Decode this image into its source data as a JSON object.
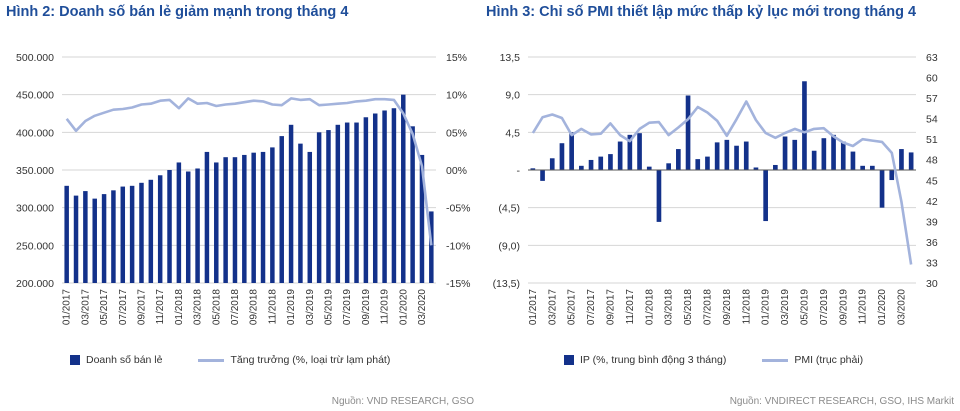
{
  "panels": {
    "left": {
      "title": "Hình 2: Doanh số bán lẻ giảm mạnh trong tháng 4",
      "legend": [
        "Doanh số bán lẻ",
        "Tăng trưởng (%, loại trừ lạm phát)"
      ],
      "source": "Nguồn: VND RESEARCH, GSO"
    },
    "right": {
      "title": "Hình 3: Chỉ số PMI thiết lập mức thấp kỷ lục mới trong tháng 4",
      "legend": [
        "IP (%, trung bình động 3 tháng)",
        "PMI (trục phải)"
      ],
      "source": "Nguồn: VNDIRECT RESEARCH, GSO, IHS Markit"
    }
  },
  "colors": {
    "bar": "#13318a",
    "line": "#a3b3dc",
    "grid": "#d6d6d6",
    "axis_text": "#333333",
    "title": "#1f4e9a"
  },
  "chart_data": [
    {
      "type": "bar",
      "title": "Hình 2: Doanh số bán lẻ giảm mạnh trong tháng 4",
      "categories": [
        "01/2017",
        "02/2017",
        "03/2017",
        "04/2017",
        "05/2017",
        "06/2017",
        "07/2017",
        "08/2017",
        "09/2017",
        "10/2017",
        "11/2017",
        "12/2017",
        "01/2018",
        "02/2018",
        "03/2018",
        "04/2018",
        "05/2018",
        "06/2018",
        "07/2018",
        "08/2018",
        "09/2018",
        "10/2018",
        "11/2018",
        "12/2018",
        "01/2019",
        "02/2019",
        "03/2019",
        "04/2019",
        "05/2019",
        "06/2019",
        "07/2019",
        "08/2019",
        "09/2019",
        "10/2019",
        "11/2019",
        "12/2019",
        "01/2020",
        "02/2020",
        "03/2020",
        "04/2020"
      ],
      "tick_labels": [
        "01/2017",
        "03/2017",
        "05/2017",
        "07/2017",
        "09/2017",
        "11/2017",
        "01/2018",
        "03/2018",
        "05/2018",
        "07/2018",
        "09/2018",
        "11/2018",
        "01/2019",
        "03/2019",
        "05/2019",
        "07/2019",
        "09/2019",
        "11/2019",
        "01/2020",
        "03/2020"
      ],
      "series": [
        {
          "name": "Doanh số bán lẻ",
          "type": "bar",
          "axis": "left",
          "values": [
            329,
            316,
            322,
            312,
            318,
            323,
            328,
            329,
            333,
            337,
            343,
            350,
            360,
            348,
            352,
            374,
            360,
            367,
            367,
            370,
            373,
            374,
            380,
            395,
            410,
            385,
            374,
            400,
            403,
            410,
            413,
            413,
            420,
            425,
            429,
            432,
            450,
            408,
            370,
            295
          ]
        },
        {
          "name": "Tăng trưởng (%, loại trừ lạm phát)",
          "type": "line",
          "axis": "right",
          "values": [
            6.8,
            5.2,
            6.5,
            7.2,
            7.6,
            8.0,
            8.1,
            8.3,
            8.7,
            8.8,
            9.2,
            9.3,
            8.2,
            9.5,
            8.8,
            8.9,
            8.5,
            8.7,
            8.8,
            9.0,
            9.2,
            9.1,
            8.7,
            8.6,
            9.5,
            9.3,
            9.4,
            8.6,
            8.7,
            8.8,
            8.9,
            9.1,
            9.2,
            9.4,
            9.4,
            9.3,
            7.5,
            4.8,
            0.5,
            -10.0
          ]
        }
      ],
      "ylim_left": [
        200,
        500
      ],
      "left_ticks": [
        "200.000",
        "250.000",
        "300.000",
        "350.000",
        "400.000",
        "450.000",
        "500.000"
      ],
      "ylim_right": [
        -15,
        15
      ],
      "right_ticks": [
        "-15%",
        "-10%",
        "-05%",
        "00%",
        "05%",
        "10%",
        "15%"
      ],
      "legend": "bottom"
    },
    {
      "type": "bar",
      "title": "Hình 3: Chỉ số PMI thiết lập mức thấp kỷ lục mới trong tháng 4",
      "categories": [
        "01/2017",
        "02/2017",
        "03/2017",
        "04/2017",
        "05/2017",
        "06/2017",
        "07/2017",
        "08/2017",
        "09/2017",
        "10/2017",
        "11/2017",
        "12/2017",
        "01/2018",
        "02/2018",
        "03/2018",
        "04/2018",
        "05/2018",
        "06/2018",
        "07/2018",
        "08/2018",
        "09/2018",
        "10/2018",
        "11/2018",
        "12/2018",
        "01/2019",
        "02/2019",
        "03/2019",
        "04/2019",
        "05/2019",
        "06/2019",
        "07/2019",
        "08/2019",
        "09/2019",
        "10/2019",
        "11/2019",
        "12/2019",
        "01/2020",
        "02/2020",
        "03/2020",
        "04/2020"
      ],
      "tick_labels": [
        "01/2017",
        "03/2017",
        "05/2017",
        "07/2017",
        "09/2017",
        "11/2017",
        "01/2018",
        "03/2018",
        "05/2018",
        "07/2018",
        "09/2018",
        "11/2018",
        "01/2019",
        "03/2019",
        "05/2019",
        "07/2019",
        "09/2019",
        "11/2019",
        "01/2020",
        "03/2020"
      ],
      "series": [
        {
          "name": "IP (%, trung bình động 3 tháng)",
          "type": "bar",
          "axis": "left",
          "values": [
            0.2,
            -1.3,
            1.4,
            3.2,
            4.5,
            0.5,
            1.2,
            1.6,
            1.9,
            3.4,
            4.2,
            4.4,
            0.4,
            -6.2,
            0.8,
            2.5,
            8.9,
            1.3,
            1.6,
            3.3,
            3.6,
            2.9,
            3.4,
            0.3,
            -6.1,
            0.6,
            4.0,
            3.6,
            10.6,
            2.3,
            3.8,
            4.2,
            3.4,
            2.2,
            0.5,
            0.5,
            -4.5,
            -1.2,
            2.5,
            2.1
          ]
        },
        {
          "name": "PMI (trục phải)",
          "type": "line",
          "axis": "right",
          "values": [
            51.9,
            54.2,
            54.6,
            54.1,
            51.6,
            52.5,
            51.7,
            51.8,
            53.3,
            51.6,
            50.7,
            52.5,
            53.4,
            53.5,
            51.6,
            52.7,
            53.9,
            55.7,
            54.9,
            53.7,
            51.5,
            53.9,
            56.5,
            53.8,
            51.9,
            51.2,
            51.9,
            52.5,
            52.0,
            52.5,
            52.6,
            51.4,
            50.5,
            50.0,
            51.0,
            50.8,
            50.6,
            49.0,
            41.9,
            32.7
          ]
        }
      ],
      "ylim_left": [
        -13.5,
        13.5
      ],
      "left_ticks": [
        "(13,5)",
        "(9,0)",
        "(4,5)",
        "-",
        "4,5",
        "9,0",
        "13,5"
      ],
      "ylim_right": [
        30,
        63
      ],
      "right_ticks": [
        "30",
        "33",
        "36",
        "39",
        "42",
        "45",
        "48",
        "51",
        "54",
        "57",
        "60",
        "63"
      ],
      "legend": "bottom"
    }
  ]
}
